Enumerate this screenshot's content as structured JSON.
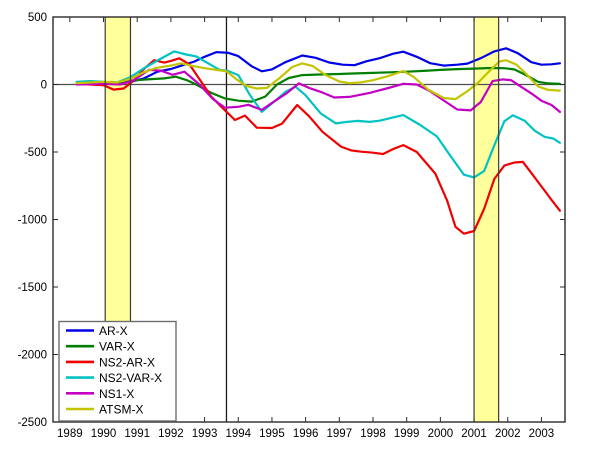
{
  "chart_data": {
    "type": "line",
    "title": "",
    "xlabel": "",
    "ylabel": "",
    "xlim": [
      1988.5,
      2003.7
    ],
    "ylim": [
      -2500,
      500
    ],
    "grid": false,
    "x_ticks": [
      1989,
      1990,
      1991,
      1992,
      1993,
      1994,
      1995,
      1996,
      1997,
      1998,
      1999,
      2000,
      2001,
      2002,
      2003
    ],
    "x_tick_labels": [
      "1989",
      "1990",
      "1991",
      "1992",
      "1993",
      "1994",
      "1995",
      "1996",
      "1997",
      "1998",
      "1999",
      "2000",
      "2001",
      "2002",
      "2003"
    ],
    "y_ticks": [
      500,
      0,
      -500,
      -1000,
      -1500,
      -2000,
      -2500
    ],
    "y_tick_labels": [
      "500",
      "0",
      "-500",
      "-1000",
      "-1500",
      "-2000",
      "-2500"
    ],
    "zero_line_y": 0,
    "vertical_line_x": 1993.65,
    "shaded_bands": [
      {
        "x0": 1990.05,
        "x1": 1990.8,
        "fill": "#ffff9c",
        "edge": "#3a3a3a"
      },
      {
        "x0": 2001.0,
        "x1": 2001.73,
        "fill": "#ffff9c",
        "edge": "#3a3a3a"
      }
    ],
    "frame_color": "#2b2b2b",
    "zero_line_color": "#4d4d4d",
    "vertical_line_color": "#1a1a1a",
    "legend": {
      "position": "bottom-left",
      "entries": [
        "AR-X",
        "VAR-X",
        "NS2-AR-X",
        "NS2-VAR-X",
        "NS1-X",
        "ATSM-X"
      ]
    },
    "series": [
      {
        "name": "AR-X",
        "color": "#0000e8",
        "points": [
          [
            1989.2,
            5
          ],
          [
            1989.6,
            5
          ],
          [
            1990.0,
            10
          ],
          [
            1990.4,
            5
          ],
          [
            1990.8,
            20
          ],
          [
            1991.2,
            45
          ],
          [
            1991.6,
            95
          ],
          [
            1992.0,
            115
          ],
          [
            1992.25,
            135
          ],
          [
            1992.7,
            170
          ],
          [
            1993.0,
            205
          ],
          [
            1993.35,
            240
          ],
          [
            1993.7,
            235
          ],
          [
            1994.0,
            210
          ],
          [
            1994.4,
            135
          ],
          [
            1994.7,
            98
          ],
          [
            1995.0,
            112
          ],
          [
            1995.4,
            165
          ],
          [
            1995.9,
            215
          ],
          [
            1996.3,
            198
          ],
          [
            1996.7,
            163
          ],
          [
            1997.1,
            147
          ],
          [
            1997.45,
            143
          ],
          [
            1997.8,
            172
          ],
          [
            1998.2,
            195
          ],
          [
            1998.6,
            228
          ],
          [
            1998.9,
            243
          ],
          [
            1999.3,
            205
          ],
          [
            1999.7,
            158
          ],
          [
            2000.1,
            140
          ],
          [
            2000.5,
            147
          ],
          [
            2000.8,
            155
          ],
          [
            2001.2,
            195
          ],
          [
            2001.6,
            245
          ],
          [
            2001.95,
            268
          ],
          [
            2002.3,
            232
          ],
          [
            2002.7,
            165
          ],
          [
            2003.0,
            147
          ],
          [
            2003.3,
            150
          ],
          [
            2003.55,
            157
          ]
        ]
      },
      {
        "name": "VAR-X",
        "color": "#007f00",
        "points": [
          [
            1989.2,
            5
          ],
          [
            1989.6,
            8
          ],
          [
            1990.0,
            10
          ],
          [
            1990.4,
            12
          ],
          [
            1990.8,
            28
          ],
          [
            1991.3,
            38
          ],
          [
            1991.8,
            45
          ],
          [
            1992.15,
            58
          ],
          [
            1992.5,
            30
          ],
          [
            1992.75,
            0
          ],
          [
            1993.2,
            -62
          ],
          [
            1993.6,
            -103
          ],
          [
            1994.0,
            -120
          ],
          [
            1994.4,
            -127
          ],
          [
            1994.8,
            -90
          ],
          [
            1995.15,
            0
          ],
          [
            1995.5,
            48
          ],
          [
            1995.9,
            70
          ],
          [
            1996.4,
            74
          ],
          [
            1997.0,
            78
          ],
          [
            1997.5,
            82
          ],
          [
            1998.0,
            86
          ],
          [
            1998.5,
            90
          ],
          [
            1999.0,
            95
          ],
          [
            1999.5,
            101
          ],
          [
            2000.0,
            108
          ],
          [
            2000.5,
            114
          ],
          [
            2001.0,
            118
          ],
          [
            2001.5,
            122
          ],
          [
            2001.9,
            121
          ],
          [
            2002.2,
            111
          ],
          [
            2002.5,
            75
          ],
          [
            2002.9,
            20
          ],
          [
            2003.2,
            8
          ],
          [
            2003.55,
            5
          ]
        ]
      },
      {
        "name": "NS2-AR-X",
        "color": "#f00000",
        "points": [
          [
            1989.2,
            5
          ],
          [
            1989.6,
            0
          ],
          [
            1990.0,
            -5
          ],
          [
            1990.3,
            -38
          ],
          [
            1990.6,
            -30
          ],
          [
            1990.9,
            30
          ],
          [
            1991.2,
            115
          ],
          [
            1991.5,
            180
          ],
          [
            1991.8,
            162
          ],
          [
            1992.0,
            175
          ],
          [
            1992.25,
            194
          ],
          [
            1992.55,
            150
          ],
          [
            1992.9,
            21
          ],
          [
            1993.2,
            -90
          ],
          [
            1993.5,
            -165
          ],
          [
            1993.9,
            -263
          ],
          [
            1994.2,
            -230
          ],
          [
            1994.55,
            -320
          ],
          [
            1995.0,
            -322
          ],
          [
            1995.3,
            -290
          ],
          [
            1995.75,
            -152
          ],
          [
            1996.1,
            -235
          ],
          [
            1996.5,
            -350
          ],
          [
            1997.05,
            -460
          ],
          [
            1997.35,
            -488
          ],
          [
            1997.65,
            -498
          ],
          [
            1998.0,
            -505
          ],
          [
            1998.3,
            -515
          ],
          [
            1998.6,
            -478
          ],
          [
            1998.9,
            -449
          ],
          [
            1999.3,
            -500
          ],
          [
            1999.85,
            -660
          ],
          [
            2000.2,
            -860
          ],
          [
            2000.45,
            -1055
          ],
          [
            2000.7,
            -1105
          ],
          [
            2001.0,
            -1085
          ],
          [
            2001.3,
            -920
          ],
          [
            2001.6,
            -700
          ],
          [
            2001.9,
            -600
          ],
          [
            2002.2,
            -578
          ],
          [
            2002.45,
            -573
          ],
          [
            2002.7,
            -655
          ],
          [
            2003.0,
            -755
          ],
          [
            2003.3,
            -855
          ],
          [
            2003.55,
            -935
          ]
        ]
      },
      {
        "name": "NS2-VAR-X",
        "color": "#00c3c3",
        "points": [
          [
            1989.2,
            20
          ],
          [
            1989.6,
            25
          ],
          [
            1990.0,
            20
          ],
          [
            1990.4,
            15
          ],
          [
            1990.8,
            55
          ],
          [
            1991.2,
            120
          ],
          [
            1991.6,
            178
          ],
          [
            1992.1,
            245
          ],
          [
            1992.45,
            222
          ],
          [
            1992.75,
            208
          ],
          [
            1993.1,
            158
          ],
          [
            1993.45,
            108
          ],
          [
            1993.7,
            100
          ],
          [
            1994.0,
            70
          ],
          [
            1994.35,
            -80
          ],
          [
            1994.7,
            -203
          ],
          [
            1995.1,
            -120
          ],
          [
            1995.4,
            -55
          ],
          [
            1995.7,
            -16
          ],
          [
            1996.0,
            -80
          ],
          [
            1996.45,
            -215
          ],
          [
            1996.9,
            -288
          ],
          [
            1997.2,
            -278
          ],
          [
            1997.55,
            -270
          ],
          [
            1997.9,
            -277
          ],
          [
            1998.2,
            -268
          ],
          [
            1998.55,
            -247
          ],
          [
            1998.9,
            -227
          ],
          [
            1999.4,
            -300
          ],
          [
            1999.9,
            -385
          ],
          [
            2000.3,
            -530
          ],
          [
            2000.7,
            -668
          ],
          [
            2001.0,
            -688
          ],
          [
            2001.3,
            -640
          ],
          [
            2001.6,
            -450
          ],
          [
            2001.9,
            -272
          ],
          [
            2002.15,
            -228
          ],
          [
            2002.5,
            -268
          ],
          [
            2002.8,
            -342
          ],
          [
            2003.1,
            -388
          ],
          [
            2003.35,
            -400
          ],
          [
            2003.55,
            -432
          ]
        ]
      },
      {
        "name": "NS1-X",
        "color": "#c400c4",
        "points": [
          [
            1989.2,
            0
          ],
          [
            1989.6,
            3
          ],
          [
            1990.0,
            5
          ],
          [
            1990.5,
            0
          ],
          [
            1990.9,
            32
          ],
          [
            1991.35,
            108
          ],
          [
            1991.7,
            103
          ],
          [
            1992.05,
            72
          ],
          [
            1992.4,
            95
          ],
          [
            1992.85,
            0
          ],
          [
            1993.25,
            -108
          ],
          [
            1993.6,
            -172
          ],
          [
            1994.0,
            -165
          ],
          [
            1994.3,
            -150
          ],
          [
            1994.7,
            -188
          ],
          [
            1995.1,
            -120
          ],
          [
            1995.45,
            -62
          ],
          [
            1995.8,
            8
          ],
          [
            1996.1,
            -25
          ],
          [
            1996.45,
            -55
          ],
          [
            1996.85,
            -96
          ],
          [
            1997.3,
            -92
          ],
          [
            1997.9,
            -62
          ],
          [
            1998.4,
            -30
          ],
          [
            1998.9,
            5
          ],
          [
            1999.3,
            0
          ],
          [
            1999.7,
            -50
          ],
          [
            2000.05,
            -110
          ],
          [
            2000.5,
            -185
          ],
          [
            2000.9,
            -192
          ],
          [
            2001.2,
            -130
          ],
          [
            2001.55,
            25
          ],
          [
            2001.85,
            38
          ],
          [
            2002.1,
            32
          ],
          [
            2002.45,
            -25
          ],
          [
            2002.7,
            -66
          ],
          [
            2003.0,
            -120
          ],
          [
            2003.3,
            -152
          ],
          [
            2003.55,
            -203
          ]
        ]
      },
      {
        "name": "ATSM-X",
        "color": "#c3c300",
        "points": [
          [
            1989.2,
            10
          ],
          [
            1989.6,
            15
          ],
          [
            1990.0,
            20
          ],
          [
            1990.4,
            15
          ],
          [
            1990.8,
            42
          ],
          [
            1991.2,
            90
          ],
          [
            1991.55,
            122
          ],
          [
            1992.0,
            140
          ],
          [
            1992.3,
            157
          ],
          [
            1992.7,
            135
          ],
          [
            1993.0,
            121
          ],
          [
            1993.4,
            107
          ],
          [
            1993.65,
            98
          ],
          [
            1993.95,
            38
          ],
          [
            1994.25,
            -12
          ],
          [
            1994.55,
            -30
          ],
          [
            1994.85,
            -25
          ],
          [
            1995.2,
            42
          ],
          [
            1995.6,
            130
          ],
          [
            1995.9,
            156
          ],
          [
            1996.2,
            138
          ],
          [
            1996.6,
            70
          ],
          [
            1997.0,
            22
          ],
          [
            1997.3,
            10
          ],
          [
            1997.65,
            16
          ],
          [
            1998.0,
            32
          ],
          [
            1998.45,
            62
          ],
          [
            1998.9,
            100
          ],
          [
            1999.2,
            58
          ],
          [
            1999.65,
            -40
          ],
          [
            2000.1,
            -100
          ],
          [
            2000.45,
            -108
          ],
          [
            2000.8,
            -50
          ],
          [
            2001.1,
            8
          ],
          [
            2001.45,
            98
          ],
          [
            2001.75,
            170
          ],
          [
            2001.95,
            180
          ],
          [
            2002.25,
            148
          ],
          [
            2002.55,
            78
          ],
          [
            2002.9,
            -15
          ],
          [
            2003.2,
            -40
          ],
          [
            2003.55,
            -45
          ]
        ]
      }
    ]
  }
}
